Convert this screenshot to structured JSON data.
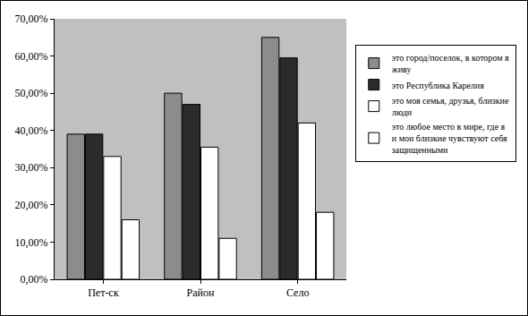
{
  "chart_data": {
    "type": "bar",
    "categories": [
      "Пет-ск",
      "Район",
      "Село"
    ],
    "series": [
      {
        "name": "это город/поселок, в котором я живу",
        "color": "#8c8c8c",
        "values": [
          39,
          50,
          65
        ]
      },
      {
        "name": "это Республика Карелия",
        "color": "#2b2b2b",
        "values": [
          39,
          47,
          59.5
        ]
      },
      {
        "name": "это моя семья, друзья, близкие люди",
        "color": "#ffffff",
        "values": [
          33,
          35.5,
          42
        ]
      },
      {
        "name": "это любое место в мире, где я и мои близкие чувствуют себя защищенными",
        "color": "#ffffff",
        "values": [
          16,
          11,
          18
        ]
      }
    ],
    "ylim": [
      0,
      70
    ],
    "yticks": [
      {
        "value": 0,
        "label": "0,00%"
      },
      {
        "value": 10,
        "label": "10,00%"
      },
      {
        "value": 20,
        "label": "20,00%"
      },
      {
        "value": 30,
        "label": "30,00%"
      },
      {
        "value": 40,
        "label": "40,00%"
      },
      {
        "value": 50,
        "label": "50,00%"
      },
      {
        "value": 60,
        "label": "60,00%"
      },
      {
        "value": 70,
        "label": "70,00%"
      }
    ],
    "grid": false,
    "legend": "right"
  }
}
